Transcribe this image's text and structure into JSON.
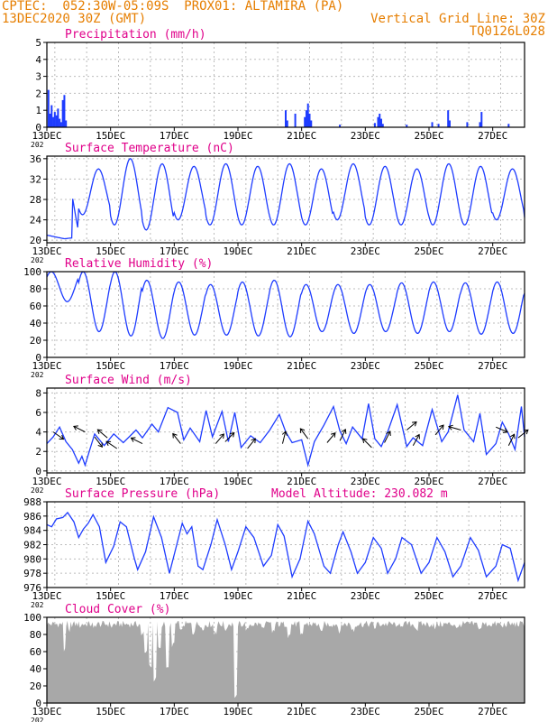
{
  "header": {
    "line1": "CPTEC:  052:30W-05:09S  PROX01: ALTAMIRA (PA)",
    "line2": "13DEC2020 30Z (GMT)",
    "grid_note": "Vertical Grid Line: 30Z",
    "model_code": "TQ0126L028"
  },
  "colors": {
    "header": "#e67e00",
    "title": "#e0008a",
    "line": "#1e3cff",
    "cloud": "#a8a8a8",
    "grid": "#bcbcbc"
  },
  "x_axis": {
    "year_label": "202",
    "day_start": 13,
    "day_end": 28,
    "tick_labels": [
      "13DEC",
      "15DEC",
      "17DEC",
      "19DEC",
      "21DEC",
      "23DEC",
      "25DEC",
      "27DEC"
    ],
    "tick_days": [
      13,
      15,
      17,
      19,
      21,
      23,
      25,
      27
    ]
  },
  "chart_data": [
    {
      "id": "precip",
      "type": "bar",
      "title": "Precipitation (mm/h)",
      "ylabel": "mm/h",
      "ylim": [
        0,
        5
      ],
      "yticks": [
        0,
        1,
        2,
        3,
        4,
        5
      ],
      "x_units": "days since 13DEC 00Z",
      "events": [
        {
          "x": 0.05,
          "y": 2.2
        },
        {
          "x": 0.1,
          "y": 0.8
        },
        {
          "x": 0.15,
          "y": 1.3
        },
        {
          "x": 0.2,
          "y": 0.6
        },
        {
          "x": 0.25,
          "y": 0.9
        },
        {
          "x": 0.3,
          "y": 0.7
        },
        {
          "x": 0.35,
          "y": 1.1
        },
        {
          "x": 0.4,
          "y": 0.5
        },
        {
          "x": 0.45,
          "y": 0.3
        },
        {
          "x": 0.5,
          "y": 1.6
        },
        {
          "x": 0.55,
          "y": 1.9
        },
        {
          "x": 0.6,
          "y": 0.4
        },
        {
          "x": 7.5,
          "y": 1.0
        },
        {
          "x": 7.55,
          "y": 0.4
        },
        {
          "x": 7.8,
          "y": 0.8
        },
        {
          "x": 8.1,
          "y": 0.6
        },
        {
          "x": 8.15,
          "y": 1.0
        },
        {
          "x": 8.2,
          "y": 1.4
        },
        {
          "x": 8.25,
          "y": 0.8
        },
        {
          "x": 8.3,
          "y": 0.4
        },
        {
          "x": 9.2,
          "y": 0.15
        },
        {
          "x": 10.3,
          "y": 0.25
        },
        {
          "x": 10.4,
          "y": 0.6
        },
        {
          "x": 10.45,
          "y": 0.8
        },
        {
          "x": 10.5,
          "y": 0.5
        },
        {
          "x": 10.55,
          "y": 0.2
        },
        {
          "x": 11.3,
          "y": 0.15
        },
        {
          "x": 12.1,
          "y": 0.3
        },
        {
          "x": 12.3,
          "y": 0.2
        },
        {
          "x": 12.6,
          "y": 1.0
        },
        {
          "x": 12.65,
          "y": 0.4
        },
        {
          "x": 13.2,
          "y": 0.3
        },
        {
          "x": 13.6,
          "y": 0.3
        },
        {
          "x": 13.65,
          "y": 0.9
        },
        {
          "x": 14.5,
          "y": 0.2
        }
      ]
    },
    {
      "id": "temp",
      "type": "line",
      "title": "Surface Temperature (nC)",
      "ylim": [
        19.5,
        36.5
      ],
      "yticks": [
        20,
        24,
        28,
        32,
        36
      ],
      "diurnal": {
        "phase_days": 0.62,
        "max_first": 21.0,
        "min_first": 20.0,
        "max": [
          32,
          34,
          36,
          35,
          34.5,
          35,
          34.5,
          35,
          34,
          35,
          34.5,
          34,
          35,
          34.5,
          34,
          34,
          34
        ],
        "min": [
          20,
          25,
          23,
          22,
          24,
          23,
          23,
          23,
          23,
          24,
          23,
          23,
          23,
          23,
          24,
          23,
          23
        ]
      }
    },
    {
      "id": "rh",
      "type": "line",
      "title": "Relative Humidity (%)",
      "ylim": [
        0,
        100
      ],
      "yticks": [
        0,
        20,
        40,
        60,
        80,
        100
      ],
      "diurnal": {
        "phase_days": 0.14,
        "max": [
          100,
          100,
          100,
          90,
          88,
          85,
          88,
          90,
          85,
          85,
          85,
          87,
          88,
          87,
          88,
          85,
          86
        ],
        "min": [
          65,
          30,
          25,
          22,
          26,
          26,
          25,
          24,
          30,
          28,
          30,
          28,
          30,
          27,
          28,
          28,
          29
        ]
      }
    },
    {
      "id": "wind",
      "type": "line",
      "title": "Surface Wind (m/s)",
      "ylim": [
        -0.2,
        8.5
      ],
      "yticks": [
        0,
        2,
        4,
        6,
        8
      ],
      "series": [
        {
          "x": 0.0,
          "y": 2.8
        },
        {
          "x": 0.2,
          "y": 3.5
        },
        {
          "x": 0.4,
          "y": 4.5
        },
        {
          "x": 0.6,
          "y": 3.0
        },
        {
          "x": 0.8,
          "y": 2.2
        },
        {
          "x": 1.0,
          "y": 0.8
        },
        {
          "x": 1.1,
          "y": 1.5
        },
        {
          "x": 1.2,
          "y": 0.6
        },
        {
          "x": 1.5,
          "y": 3.8
        },
        {
          "x": 1.8,
          "y": 2.6
        },
        {
          "x": 2.1,
          "y": 3.8
        },
        {
          "x": 2.4,
          "y": 2.9
        },
        {
          "x": 2.8,
          "y": 4.2
        },
        {
          "x": 3.0,
          "y": 3.4
        },
        {
          "x": 3.3,
          "y": 4.8
        },
        {
          "x": 3.5,
          "y": 4.0
        },
        {
          "x": 3.8,
          "y": 6.5
        },
        {
          "x": 4.1,
          "y": 6.0
        },
        {
          "x": 4.3,
          "y": 3.2
        },
        {
          "x": 4.5,
          "y": 4.4
        },
        {
          "x": 4.8,
          "y": 3.0
        },
        {
          "x": 5.0,
          "y": 6.2
        },
        {
          "x": 5.2,
          "y": 3.5
        },
        {
          "x": 5.5,
          "y": 6.1
        },
        {
          "x": 5.7,
          "y": 3.0
        },
        {
          "x": 5.9,
          "y": 6.0
        },
        {
          "x": 6.1,
          "y": 2.4
        },
        {
          "x": 6.4,
          "y": 3.6
        },
        {
          "x": 6.7,
          "y": 2.9
        },
        {
          "x": 7.0,
          "y": 4.2
        },
        {
          "x": 7.3,
          "y": 5.8
        },
        {
          "x": 7.5,
          "y": 4.0
        },
        {
          "x": 7.7,
          "y": 2.9
        },
        {
          "x": 8.0,
          "y": 3.2
        },
        {
          "x": 8.2,
          "y": 0.6
        },
        {
          "x": 8.4,
          "y": 3.0
        },
        {
          "x": 8.7,
          "y": 4.7
        },
        {
          "x": 9.0,
          "y": 6.6
        },
        {
          "x": 9.2,
          "y": 4.1
        },
        {
          "x": 9.4,
          "y": 2.8
        },
        {
          "x": 9.6,
          "y": 4.5
        },
        {
          "x": 9.9,
          "y": 3.3
        },
        {
          "x": 10.1,
          "y": 6.9
        },
        {
          "x": 10.3,
          "y": 3.3
        },
        {
          "x": 10.5,
          "y": 2.5
        },
        {
          "x": 10.7,
          "y": 4.0
        },
        {
          "x": 11.0,
          "y": 6.8
        },
        {
          "x": 11.3,
          "y": 2.5
        },
        {
          "x": 11.5,
          "y": 3.4
        },
        {
          "x": 11.8,
          "y": 2.6
        },
        {
          "x": 12.1,
          "y": 6.3
        },
        {
          "x": 12.4,
          "y": 3.0
        },
        {
          "x": 12.6,
          "y": 4.0
        },
        {
          "x": 12.9,
          "y": 7.8
        },
        {
          "x": 13.1,
          "y": 4.2
        },
        {
          "x": 13.4,
          "y": 3.0
        },
        {
          "x": 13.6,
          "y": 5.9
        },
        {
          "x": 13.8,
          "y": 1.7
        },
        {
          "x": 14.1,
          "y": 2.8
        },
        {
          "x": 14.3,
          "y": 5.0
        },
        {
          "x": 14.5,
          "y": 3.8
        },
        {
          "x": 14.7,
          "y": 2.2
        },
        {
          "x": 14.9,
          "y": 6.6
        },
        {
          "x": 15.0,
          "y": 3.5
        }
      ],
      "vectors": [
        {
          "x": 0.2,
          "y": 4.0,
          "u": 1,
          "v": -0.7
        },
        {
          "x": 1.2,
          "y": 4.0,
          "u": -0.4,
          "v": 0.2
        },
        {
          "x": 1.5,
          "y": 3.5,
          "u": 0.3,
          "v": -0.4
        },
        {
          "x": 1.9,
          "y": 3.4,
          "u": -0.6,
          "v": 0.5
        },
        {
          "x": 2.2,
          "y": 2.3,
          "u": -0.3,
          "v": 0.2
        },
        {
          "x": 3.0,
          "y": 2.8,
          "u": -0.6,
          "v": 0.3
        },
        {
          "x": 4.2,
          "y": 2.8,
          "u": -0.7,
          "v": 0.9
        },
        {
          "x": 5.3,
          "y": 2.8,
          "u": 0.6,
          "v": 0.7
        },
        {
          "x": 5.6,
          "y": 3.0,
          "u": 0.6,
          "v": 0.6
        },
        {
          "x": 6.3,
          "y": 2.3,
          "u": 0.8,
          "v": 1.0
        },
        {
          "x": 7.4,
          "y": 2.8,
          "u": 0.2,
          "v": 0.8
        },
        {
          "x": 8.2,
          "y": 3.3,
          "u": -0.3,
          "v": 0.4
        },
        {
          "x": 8.8,
          "y": 2.9,
          "u": 0.5,
          "v": 0.6
        },
        {
          "x": 9.2,
          "y": 3.1,
          "u": 0.2,
          "v": 0.4
        },
        {
          "x": 10.2,
          "y": 2.4,
          "u": -0.3,
          "v": 0.3
        },
        {
          "x": 10.6,
          "y": 2.9,
          "u": 0.4,
          "v": 0.8
        },
        {
          "x": 11.3,
          "y": 4.2,
          "u": 0.6,
          "v": 0.5
        },
        {
          "x": 11.5,
          "y": 2.6,
          "u": 0.5,
          "v": 0.9
        },
        {
          "x": 12.2,
          "y": 3.7,
          "u": 0.5,
          "v": 0.6
        },
        {
          "x": 13.0,
          "y": 4.2,
          "u": -0.7,
          "v": 0.2
        },
        {
          "x": 14.1,
          "y": 4.5,
          "u": 0.7,
          "v": -0.3
        },
        {
          "x": 14.5,
          "y": 2.6,
          "u": 0.3,
          "v": 0.6
        },
        {
          "x": 14.8,
          "y": 3.4,
          "u": 0.5,
          "v": 0.4
        }
      ]
    },
    {
      "id": "pres",
      "type": "line",
      "title": "Surface Pressure (hPa)",
      "altitude_label": "Model Altitude: 230.082  m",
      "ylim": [
        976,
        988
      ],
      "yticks": [
        976,
        978,
        980,
        982,
        984,
        986,
        988
      ],
      "series": [
        {
          "x": 0.0,
          "y": 984.8
        },
        {
          "x": 0.15,
          "y": 984.5
        },
        {
          "x": 0.3,
          "y": 985.6
        },
        {
          "x": 0.5,
          "y": 985.8
        },
        {
          "x": 0.65,
          "y": 986.5
        },
        {
          "x": 0.85,
          "y": 985.2
        },
        {
          "x": 1.0,
          "y": 983.0
        },
        {
          "x": 1.15,
          "y": 984.2
        },
        {
          "x": 1.3,
          "y": 985.0
        },
        {
          "x": 1.45,
          "y": 986.2
        },
        {
          "x": 1.65,
          "y": 984.5
        },
        {
          "x": 1.85,
          "y": 979.5
        },
        {
          "x": 2.1,
          "y": 981.8
        },
        {
          "x": 2.3,
          "y": 985.2
        },
        {
          "x": 2.5,
          "y": 984.5
        },
        {
          "x": 2.75,
          "y": 980.0
        },
        {
          "x": 2.85,
          "y": 978.5
        },
        {
          "x": 3.1,
          "y": 981.0
        },
        {
          "x": 3.35,
          "y": 985.9
        },
        {
          "x": 3.6,
          "y": 983.0
        },
        {
          "x": 3.85,
          "y": 978.0
        },
        {
          "x": 4.05,
          "y": 981.5
        },
        {
          "x": 4.25,
          "y": 985.0
        },
        {
          "x": 4.4,
          "y": 983.5
        },
        {
          "x": 4.55,
          "y": 984.5
        },
        {
          "x": 4.75,
          "y": 979.0
        },
        {
          "x": 4.9,
          "y": 978.5
        },
        {
          "x": 5.15,
          "y": 982.0
        },
        {
          "x": 5.35,
          "y": 985.5
        },
        {
          "x": 5.6,
          "y": 982.0
        },
        {
          "x": 5.8,
          "y": 978.5
        },
        {
          "x": 6.0,
          "y": 981.0
        },
        {
          "x": 6.25,
          "y": 984.5
        },
        {
          "x": 6.5,
          "y": 983.0
        },
        {
          "x": 6.8,
          "y": 979.0
        },
        {
          "x": 7.05,
          "y": 980.5
        },
        {
          "x": 7.25,
          "y": 984.8
        },
        {
          "x": 7.45,
          "y": 983.2
        },
        {
          "x": 7.7,
          "y": 977.5
        },
        {
          "x": 7.95,
          "y": 980.0
        },
        {
          "x": 8.2,
          "y": 985.3
        },
        {
          "x": 8.4,
          "y": 983.5
        },
        {
          "x": 8.7,
          "y": 979.0
        },
        {
          "x": 8.9,
          "y": 978.0
        },
        {
          "x": 9.15,
          "y": 982.0
        },
        {
          "x": 9.3,
          "y": 983.8
        },
        {
          "x": 9.55,
          "y": 981.0
        },
        {
          "x": 9.75,
          "y": 978.0
        },
        {
          "x": 10.0,
          "y": 979.5
        },
        {
          "x": 10.25,
          "y": 983.0
        },
        {
          "x": 10.5,
          "y": 981.5
        },
        {
          "x": 10.7,
          "y": 978.0
        },
        {
          "x": 10.95,
          "y": 980.0
        },
        {
          "x": 11.15,
          "y": 983.0
        },
        {
          "x": 11.45,
          "y": 982.0
        },
        {
          "x": 11.75,
          "y": 978.0
        },
        {
          "x": 12.0,
          "y": 979.5
        },
        {
          "x": 12.25,
          "y": 983.0
        },
        {
          "x": 12.5,
          "y": 981.0
        },
        {
          "x": 12.75,
          "y": 977.5
        },
        {
          "x": 13.0,
          "y": 979.0
        },
        {
          "x": 13.3,
          "y": 983.0
        },
        {
          "x": 13.55,
          "y": 981.2
        },
        {
          "x": 13.8,
          "y": 977.5
        },
        {
          "x": 14.1,
          "y": 979.0
        },
        {
          "x": 14.3,
          "y": 982.0
        },
        {
          "x": 14.55,
          "y": 981.5
        },
        {
          "x": 14.8,
          "y": 977.0
        },
        {
          "x": 15.0,
          "y": 979.5
        }
      ]
    },
    {
      "id": "cloud",
      "type": "area",
      "title": "Cloud Cover (%)",
      "ylim": [
        0,
        100
      ],
      "yticks": [
        0,
        20,
        40,
        60,
        80,
        100
      ],
      "baseline": 92,
      "dips": [
        {
          "x": 0.55,
          "y": 60
        },
        {
          "x": 0.7,
          "y": 82
        },
        {
          "x": 1.05,
          "y": 84
        },
        {
          "x": 1.5,
          "y": 85
        },
        {
          "x": 2.05,
          "y": 87
        },
        {
          "x": 3.0,
          "y": 78
        },
        {
          "x": 3.1,
          "y": 55
        },
        {
          "x": 3.25,
          "y": 40
        },
        {
          "x": 3.4,
          "y": 25
        },
        {
          "x": 3.55,
          "y": 60
        },
        {
          "x": 3.8,
          "y": 38
        },
        {
          "x": 3.95,
          "y": 65
        },
        {
          "x": 4.2,
          "y": 82
        },
        {
          "x": 4.6,
          "y": 80
        },
        {
          "x": 4.9,
          "y": 84
        },
        {
          "x": 5.3,
          "y": 78
        },
        {
          "x": 5.6,
          "y": 83
        },
        {
          "x": 5.93,
          "y": 5
        },
        {
          "x": 6.3,
          "y": 83
        },
        {
          "x": 6.8,
          "y": 84
        },
        {
          "x": 7.1,
          "y": 80
        },
        {
          "x": 7.6,
          "y": 75
        },
        {
          "x": 8.0,
          "y": 78
        },
        {
          "x": 8.6,
          "y": 83
        },
        {
          "x": 9.2,
          "y": 80
        },
        {
          "x": 9.6,
          "y": 82
        },
        {
          "x": 10.3,
          "y": 84
        },
        {
          "x": 11.0,
          "y": 85
        },
        {
          "x": 11.6,
          "y": 83
        },
        {
          "x": 12.2,
          "y": 85
        },
        {
          "x": 12.9,
          "y": 84
        },
        {
          "x": 13.6,
          "y": 85
        },
        {
          "x": 14.3,
          "y": 86
        }
      ]
    }
  ]
}
